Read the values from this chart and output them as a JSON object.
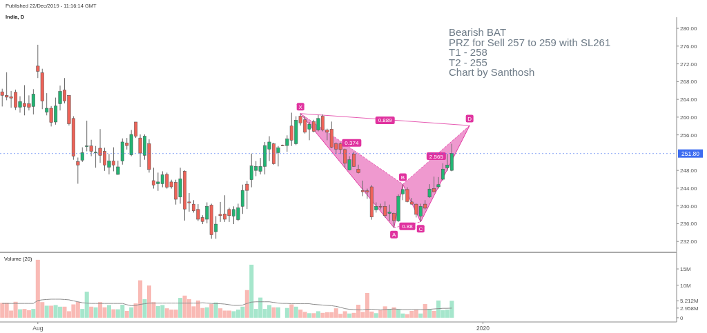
{
  "chart_data": [
    {
      "type": "candlestick",
      "subtitle": "Published 22/Dec/2019 - 11:16:14 GMT",
      "title": "India, D",
      "categories": [
        null,
        null,
        null,
        null,
        null,
        null,
        null,
        null,
        null,
        null,
        null,
        null,
        null,
        null,
        null,
        null,
        null,
        null,
        null,
        null,
        null,
        null,
        null,
        null,
        null,
        null,
        null,
        null,
        null,
        null,
        null,
        null,
        null,
        null,
        null,
        null,
        null,
        null,
        null,
        null,
        null,
        null,
        null,
        null,
        null,
        null,
        null,
        null,
        null,
        null,
        null,
        null,
        null,
        null,
        null,
        null,
        null,
        null,
        null,
        null,
        null,
        null,
        null,
        null,
        null,
        null,
        null,
        null,
        null,
        null,
        null,
        null,
        null,
        null,
        null,
        null,
        null,
        null,
        null,
        null,
        null,
        null,
        null,
        null,
        null,
        null,
        null,
        null,
        null,
        null,
        null,
        null,
        null,
        null,
        null,
        null,
        null,
        null,
        null,
        null,
        null,
        null,
        null,
        null,
        null,
        null,
        null,
        null,
        null,
        null,
        null,
        null,
        null,
        null,
        null,
        null,
        null,
        null,
        null,
        null,
        null,
        null,
        null,
        null,
        null,
        null,
        null,
        null,
        null,
        null,
        null,
        null,
        null,
        null,
        null,
        null,
        null,
        null,
        null,
        null,
        null,
        null,
        null,
        null,
        null,
        null,
        null,
        null,
        null,
        null,
        null,
        null
      ],
      "ohlc": [
        [
          265.7,
          266.4,
          262.4,
          264.9
        ],
        [
          264.9,
          270.1,
          263.8,
          264.5
        ],
        [
          264.6,
          265.9,
          262.1,
          264.3
        ],
        [
          265.6,
          266.2,
          261.6,
          262.2
        ],
        [
          262.2,
          264.7,
          261.0,
          263.5
        ],
        [
          263.1,
          267.2,
          260.4,
          262.4
        ],
        [
          263.0,
          264.9,
          261.5,
          262.2
        ],
        [
          262.4,
          266.3,
          260.6,
          265.2
        ],
        [
          271.5,
          276.3,
          268.8,
          270.3
        ],
        [
          270.0,
          270.9,
          261.8,
          263.6
        ],
        [
          261.1,
          265.4,
          260.4,
          262.0
        ],
        [
          262.0,
          262.5,
          257.9,
          258.8
        ],
        [
          258.9,
          264.4,
          258.3,
          262.5
        ],
        [
          263.0,
          267.1,
          261.5,
          265.8
        ],
        [
          266.1,
          268.8,
          263.1,
          263.6
        ],
        [
          264.9,
          264.9,
          258.1,
          258.5
        ],
        [
          259.7,
          260.2,
          250.4,
          251.2
        ],
        [
          250.0,
          250.9,
          245.0,
          249.2
        ],
        [
          250.3,
          253.2,
          249.9,
          252.0
        ],
        [
          253.4,
          259.2,
          252.3,
          253.5
        ],
        [
          253.5,
          254.9,
          251.2,
          252.3
        ],
        [
          252.0,
          253.5,
          248.6,
          252.1
        ],
        [
          253.0,
          257.3,
          249.7,
          251.4
        ],
        [
          252.3,
          253.1,
          247.9,
          249.2
        ],
        [
          248.7,
          251.7,
          247.1,
          250.1
        ],
        [
          250.1,
          253.2,
          247.8,
          249.2
        ],
        [
          247.1,
          250.2,
          247.0,
          248.8
        ],
        [
          250.1,
          255.2,
          249.3,
          254.4
        ],
        [
          254.2,
          255.3,
          252.7,
          253.6
        ],
        [
          251.5,
          257.1,
          251.2,
          256.1
        ],
        [
          258.9,
          258.9,
          255.3,
          255.7
        ],
        [
          255.3,
          256.1,
          248.8,
          251.9
        ],
        [
          251.4,
          256.1,
          250.4,
          255.7
        ],
        [
          254.0,
          255.0,
          247.5,
          248.2
        ],
        [
          245.7,
          248.6,
          243.9,
          244.7
        ],
        [
          245.0,
          247.5,
          243.4,
          245.4
        ],
        [
          245.0,
          247.8,
          244.2,
          247.0
        ],
        [
          247.1,
          247.5,
          243.9,
          244.2
        ],
        [
          245.4,
          245.9,
          243.9,
          244.3
        ],
        [
          245.3,
          245.9,
          240.3,
          241.5
        ],
        [
          242.0,
          248.6,
          240.5,
          246.1
        ],
        [
          247.8,
          248.0,
          236.7,
          239.3
        ],
        [
          240.9,
          242.9,
          238.7,
          240.7
        ],
        [
          240.4,
          241.3,
          238.5,
          238.9
        ],
        [
          239.2,
          240.4,
          236.6,
          237.0
        ],
        [
          237.4,
          237.9,
          235.9,
          236.5
        ],
        [
          237.0,
          240.8,
          236.1,
          239.9
        ],
        [
          240.2,
          240.5,
          232.6,
          233.5
        ],
        [
          234.2,
          237.7,
          232.6,
          235.9
        ],
        [
          238.1,
          240.9,
          236.4,
          237.8
        ],
        [
          238.2,
          242.4,
          236.4,
          237.0
        ],
        [
          239.2,
          239.6,
          236.4,
          237.8
        ],
        [
          237.7,
          239.9,
          235.9,
          239.2
        ],
        [
          236.9,
          240.5,
          236.6,
          239.6
        ],
        [
          239.9,
          244.8,
          238.2,
          243.5
        ],
        [
          244.9,
          245.6,
          239.3,
          243.5
        ],
        [
          245.9,
          251.8,
          244.2,
          249.0
        ],
        [
          248.0,
          250.1,
          246.7,
          248.9
        ],
        [
          247.8,
          250.8,
          247.1,
          248.9
        ],
        [
          248.9,
          254.4,
          247.1,
          253.6
        ],
        [
          252.8,
          255.7,
          250.1,
          254.4
        ],
        [
          254.0,
          254.2,
          249.3,
          249.5
        ],
        [
          252.0,
          253.5,
          248.9,
          253.1
        ],
        [
          253.7,
          253.8,
          253.5,
          253.6
        ],
        [
          253.6,
          255.9,
          252.2,
          255.1
        ],
        [
          258.0,
          261.0,
          253.5,
          254.8
        ],
        [
          254.0,
          260.2,
          253.7,
          259.3
        ],
        [
          260.2,
          260.8,
          258.1,
          258.7
        ],
        [
          259.4,
          260.2,
          256.3,
          256.6
        ],
        [
          257.3,
          258.9,
          254.8,
          258.4
        ],
        [
          259.0,
          259.4,
          256.6,
          256.8
        ],
        [
          257.1,
          260.5,
          256.8,
          259.7
        ],
        [
          260.2,
          260.6,
          256.8,
          257.1
        ],
        [
          257.1,
          257.4,
          254.8,
          256.6
        ],
        [
          257.3,
          259.0,
          253.0,
          253.2
        ],
        [
          254.0,
          254.3,
          251.7,
          252.8
        ],
        [
          254.0,
          254.3,
          251.7,
          252.7
        ],
        [
          252.7,
          252.9,
          248.6,
          249.6
        ],
        [
          248.1,
          251.2,
          248.0,
          250.4
        ],
        [
          251.7,
          252.2,
          248.8,
          248.9
        ],
        [
          248.3,
          249.3,
          247.3,
          247.5
        ],
        [
          243.5,
          245.7,
          242.2,
          243.2
        ],
        [
          243.4,
          243.9,
          241.6,
          243.1
        ],
        [
          244.3,
          244.7,
          236.9,
          237.5
        ],
        [
          239.1,
          240.8,
          238.5,
          239.9
        ],
        [
          239.9,
          240.5,
          239.2,
          239.8
        ],
        [
          239.9,
          241.0,
          237.4,
          237.8
        ],
        [
          238.3,
          240.3,
          236.6,
          238.6
        ],
        [
          238.3,
          238.5,
          235.1,
          236.7
        ],
        [
          236.6,
          242.6,
          236.4,
          242.2
        ],
        [
          242.7,
          244.9,
          241.3,
          243.7
        ],
        [
          243.7,
          244.2,
          240.8,
          241.0
        ],
        [
          240.9,
          241.8,
          240.3,
          240.4
        ],
        [
          240.4,
          240.5,
          237.4,
          238.1
        ],
        [
          237.7,
          240.5,
          236.4,
          239.9
        ],
        [
          240.4,
          241.3,
          239.2,
          239.5
        ],
        [
          242.0,
          244.9,
          241.8,
          243.8
        ],
        [
          243.9,
          246.6,
          243.1,
          243.2
        ],
        [
          244.3,
          246.5,
          243.9,
          244.8
        ],
        [
          246.0,
          249.6,
          245.7,
          248.3
        ],
        [
          248.6,
          251.7,
          247.9,
          249.2
        ],
        [
          248.0,
          254.0,
          247.8,
          251.8
        ],
        null,
        null,
        null,
        null,
        null,
        null,
        null,
        null,
        null,
        null,
        null,
        null,
        null,
        null,
        null,
        null,
        null,
        null,
        null,
        null,
        null,
        null,
        null,
        null,
        null,
        null,
        null,
        null,
        null,
        null,
        null,
        null,
        null,
        null,
        null,
        null,
        null,
        null,
        null,
        null,
        null,
        null,
        null,
        null,
        null,
        null,
        null,
        null,
        null,
        null
      ],
      "colors": [
        "#ef6358",
        "#ef6358",
        "#ef6358",
        "#ef6358",
        "#22b573",
        "#ef6358",
        "#ef6358",
        "#22b573",
        "#ef6358",
        "#ef6358",
        "#22b573",
        "#ef6358",
        "#22b573",
        "#22b573",
        "#ef6358",
        "#ef6358",
        "#ef6358",
        "#ef6358",
        "#22b573",
        "#22b573",
        "#ef6358",
        "#22b573",
        "#ef6358",
        "#ef6358",
        "#22b573",
        "#ef6358",
        "#22b573",
        "#22b573",
        "#ef6358",
        "#22b573",
        "#ef6358",
        "#ef6358",
        "#22b573",
        "#ef6358",
        "#ef6358",
        "#22b573",
        "#22b573",
        "#ef6358",
        "#ef6358",
        "#ef6358",
        "#22b573",
        "#ef6358",
        "#ef6358",
        "#ef6358",
        "#ef6358",
        "#ef6358",
        "#22b573",
        "#ef6358",
        "#22b573",
        "#ef6358",
        "#ef6358",
        "#ef6358",
        "#22b573",
        "#22b573",
        "#22b573",
        "#ef6358",
        "#22b573",
        "#22b573",
        "#22b573",
        "#22b573",
        "#22b573",
        "#ef6358",
        "#22b573",
        "#ef6358",
        "#22b573",
        "#ef6358",
        "#22b573",
        "#ef6358",
        "#ef6358",
        "#22b573",
        "#ef6358",
        "#22b573",
        "#ef6358",
        "#ef6358",
        "#ef6358",
        "#ef6358",
        "#ef6358",
        "#ef6358",
        "#22b573",
        "#ef6358",
        "#ef6358",
        "#ef6358",
        "#ef6358",
        "#ef6358",
        "#22b573",
        "#ef6358",
        "#ef6358",
        "#22b573",
        "#ef6358",
        "#22b573",
        "#22b573",
        "#ef6358",
        "#ef6358",
        "#ef6358",
        "#22b573",
        "#ef6358",
        "#22b573",
        "#ef6358",
        "#22b573",
        "#22b573",
        "#22b573",
        "#22b573",
        null,
        null,
        null,
        null,
        null,
        null,
        null,
        null,
        null,
        null,
        null,
        null,
        null,
        null,
        null,
        null,
        null,
        null,
        null,
        null,
        null,
        null,
        null,
        null,
        null,
        null,
        null,
        null,
        null,
        null,
        null,
        null,
        null,
        null,
        null,
        null,
        null,
        null,
        null,
        null,
        null,
        null,
        null,
        null,
        null,
        null,
        null,
        null,
        null,
        null
      ],
      "series": [
        {
          "type": "line",
          "color": "#e0339f",
          "values": [
            null,
            null,
            null,
            null,
            null,
            null,
            null,
            null,
            null,
            null,
            null,
            null,
            null,
            null,
            null,
            null,
            null,
            null,
            null,
            null,
            null,
            null,
            null,
            null,
            null,
            null,
            null,
            null,
            null,
            null,
            null,
            null,
            null,
            null,
            null,
            null,
            null,
            null,
            null,
            null,
            null,
            null,
            null,
            null,
            null,
            null,
            null,
            null,
            null,
            null,
            null,
            null,
            null,
            null,
            null,
            null,
            null,
            null,
            null,
            null,
            null,
            null,
            null,
            null,
            null,
            null,
            null,
            260.8,
            null,
            null,
            null,
            null,
            null,
            null,
            null,
            null,
            null,
            null,
            null,
            null,
            null,
            null,
            null,
            null,
            null,
            null,
            null,
            null,
            235.1,
            null,
            244.9,
            null,
            null,
            null,
            236.4,
            null,
            null,
            null,
            null,
            null,
            null,
            null,
            null,
            null,
            null,
            258.1,
            null,
            null,
            null,
            null,
            null,
            null,
            null,
            null,
            null,
            null,
            null,
            null,
            null,
            null,
            null,
            null,
            null,
            null,
            null,
            null,
            null,
            null,
            null,
            null,
            null,
            null,
            null,
            null,
            null,
            null,
            null,
            null,
            null,
            null,
            null,
            null,
            null,
            null,
            null,
            null,
            null,
            null,
            null,
            null,
            null,
            null
          ]
        }
      ],
      "ylim": [
        229.7,
        282.5
      ],
      "yticks": [
        {
          "value": 232,
          "label": "232.00"
        },
        {
          "value": 236,
          "label": "236.00"
        },
        {
          "value": 240,
          "label": "240.00"
        },
        {
          "value": 244,
          "label": "244.00"
        },
        {
          "value": 248,
          "label": "248.00"
        },
        {
          "value": 256,
          "label": "256.00"
        },
        {
          "value": 260,
          "label": "260.00"
        },
        {
          "value": 264,
          "label": "264.00"
        },
        {
          "value": 268,
          "label": "268.00"
        },
        {
          "value": 272,
          "label": "272.00"
        },
        {
          "value": 276,
          "label": "276.00"
        },
        {
          "value": 280,
          "label": "280.00"
        }
      ],
      "tick_labels": "y",
      "ref_lines": [
        {
          "axis": "y",
          "value": 251.8,
          "label": "251.80",
          "color": "#3d6cf0",
          "line_style": "dotted"
        }
      ],
      "annotations": [
        "Bearish BAT",
        "PRZ for Sell 257 to 259 with SL261",
        "T1 - 258",
        "T2 - 255",
        "Chart by Santhosh",
        {
          "text": "X",
          "y": 260.8
        },
        {
          "text": "A",
          "y": 235.1
        },
        {
          "text": "B",
          "y": 244.9
        },
        {
          "text": "C",
          "y": 236.4
        },
        {
          "text": "D",
          "y": 258.1
        },
        {
          "text": "0.374",
          "y": 254.2
        },
        {
          "text": "0.88",
          "y": 235.4
        },
        {
          "text": "2.565",
          "y": 251.2
        },
        {
          "text": "0.889",
          "y": 259.3
        }
      ]
    },
    {
      "type": "bar",
      "title": "Volume (20)",
      "categories": [
        null,
        null,
        null,
        null,
        null,
        null,
        null,
        null,
        "Aug",
        null,
        null,
        null,
        null,
        null,
        null,
        null,
        null,
        null,
        null,
        null,
        null,
        null,
        null,
        null,
        null,
        null,
        null,
        null,
        null,
        null,
        null,
        null,
        null,
        null,
        null,
        null,
        null,
        null,
        null,
        null,
        null,
        null,
        null,
        null,
        null,
        null,
        null,
        null,
        null,
        null,
        null,
        null,
        null,
        null,
        null,
        null,
        null,
        null,
        null,
        null,
        null,
        null,
        null,
        null,
        null,
        null,
        null,
        null,
        null,
        null,
        null,
        null,
        null,
        null,
        null,
        null,
        null,
        null,
        null,
        null,
        null,
        null,
        null,
        null,
        null,
        null,
        null,
        null,
        null,
        null,
        null,
        null,
        null,
        null,
        null,
        null,
        null,
        null,
        null,
        null,
        null,
        null,
        null,
        null,
        null,
        null,
        null,
        null,
        "2020",
        null,
        null,
        null,
        null,
        null,
        null,
        null,
        null,
        null,
        null,
        null,
        null,
        null,
        null,
        null,
        null,
        null,
        null,
        null,
        null,
        null,
        null,
        null,
        null,
        null,
        null,
        null,
        null,
        null,
        null,
        null,
        null,
        null,
        null,
        null,
        null,
        null,
        null,
        null,
        null,
        null,
        null,
        null
      ],
      "series": [
        {
          "type": "bar",
          "colors": [
            "#f9bab5",
            "#f9bab5",
            "#f9bab5",
            "#f9bab5",
            "#a6e6cc",
            "#f9bab5",
            "#f9bab5",
            "#a6e6cc",
            "#f9bab5",
            "#f9bab5",
            "#a6e6cc",
            "#f9bab5",
            "#a6e6cc",
            "#a6e6cc",
            "#f9bab5",
            "#f9bab5",
            "#f9bab5",
            "#f9bab5",
            "#a6e6cc",
            "#a6e6cc",
            "#f9bab5",
            "#a6e6cc",
            "#f9bab5",
            "#f9bab5",
            "#a6e6cc",
            "#f9bab5",
            "#a6e6cc",
            "#a6e6cc",
            "#f9bab5",
            "#a6e6cc",
            "#f9bab5",
            "#f9bab5",
            "#a6e6cc",
            "#f9bab5",
            "#f9bab5",
            "#a6e6cc",
            "#a6e6cc",
            "#f9bab5",
            "#f9bab5",
            "#f9bab5",
            "#a6e6cc",
            "#f9bab5",
            "#f9bab5",
            "#f9bab5",
            "#f9bab5",
            "#f9bab5",
            "#a6e6cc",
            "#f9bab5",
            "#a6e6cc",
            "#f9bab5",
            "#f9bab5",
            "#f9bab5",
            "#a6e6cc",
            "#a6e6cc",
            "#a6e6cc",
            "#f9bab5",
            "#a6e6cc",
            "#a6e6cc",
            "#a6e6cc",
            "#a6e6cc",
            "#a6e6cc",
            "#f9bab5",
            "#a6e6cc",
            null,
            "#a6e6cc",
            "#f9bab5",
            "#a6e6cc",
            "#f9bab5",
            "#f9bab5",
            "#a6e6cc",
            "#f9bab5",
            "#a6e6cc",
            "#f9bab5",
            "#f9bab5",
            "#f9bab5",
            "#f9bab5",
            "#f9bab5",
            "#f9bab5",
            "#a6e6cc",
            "#f9bab5",
            "#f9bab5",
            "#f9bab5",
            "#f9bab5",
            "#f9bab5",
            "#a6e6cc",
            "#f9bab5",
            "#f9bab5",
            "#a6e6cc",
            "#f9bab5",
            "#a6e6cc",
            "#a6e6cc",
            "#f9bab5",
            "#f9bab5",
            "#f9bab5",
            "#a6e6cc",
            "#f9bab5",
            "#a6e6cc",
            "#f9bab5",
            "#a6e6cc",
            "#a6e6cc",
            "#a6e6cc",
            "#a6e6cc",
            null,
            null,
            null,
            null,
            null,
            null,
            null,
            null,
            null,
            null,
            null,
            null,
            null,
            null,
            null,
            null,
            null,
            null,
            null,
            null,
            null,
            null,
            null,
            null,
            null,
            null,
            null,
            null,
            null,
            null,
            null,
            null,
            null,
            null,
            null,
            null,
            null,
            null,
            null,
            null,
            null,
            null,
            null,
            null,
            null,
            null,
            null,
            null,
            null,
            null
          ],
          "values": [
            4.6,
            4.6,
            2.2,
            4.9,
            2.6,
            2.7,
            2.3,
            2.7,
            17.8,
            4.8,
            3.7,
            3.7,
            3.9,
            3.4,
            3.4,
            2.0,
            4.1,
            4.9,
            2.7,
            8.0,
            3.4,
            3.2,
            4.8,
            3.2,
            3.9,
            2.6,
            2.6,
            4.0,
            2.1,
            3.2,
            4.4,
            11.5,
            5.7,
            9.9,
            4.8,
            3.6,
            3.9,
            2.9,
            2.5,
            2.5,
            6.1,
            6.8,
            5.7,
            3.5,
            5.3,
            3.0,
            3.2,
            4.2,
            4.7,
            2.9,
            2.2,
            2.2,
            2.0,
            2.5,
            3.4,
            8.5,
            16.3,
            2.7,
            6.2,
            2.7,
            3.9,
            3.2,
            3.2,
            null,
            3.0,
            4.1,
            3.4,
            2.5,
            1.8,
            1.4,
            1.4,
            2.0,
            1.5,
            1.7,
            1.7,
            2.9,
            1.2,
            2.0,
            1.3,
            1.5,
            4.0,
            1.8,
            7.6,
            1.9,
            1.4,
            2.5,
            3.5,
            2.7,
            3.2,
            2.5,
            1.3,
            1.1,
            2.1,
            2.5,
            1.3,
            4.2,
            2.7,
            2.1,
            5.3,
            2.3,
            2.5,
            5.212,
            null,
            null,
            null,
            null,
            null,
            null,
            null,
            null,
            null,
            null,
            null,
            null,
            null,
            null,
            null,
            null,
            null,
            null,
            null,
            null,
            null,
            null,
            null,
            null,
            null,
            null,
            null,
            null,
            null,
            null,
            null,
            null,
            null,
            null,
            null,
            null,
            null,
            null,
            null,
            null,
            null,
            null,
            null,
            null,
            null,
            null,
            null,
            null,
            null,
            null
          ]
        },
        {
          "type": "line",
          "color": "#8a8a8a",
          "values": [
            4.4,
            4.4,
            4.4,
            4.4,
            4.4,
            4.4,
            4.4,
            4.4,
            5.3,
            5.5,
            5.6,
            5.7,
            5.7,
            5.7,
            5.6,
            5.5,
            5.2,
            4.9,
            4.6,
            4.5,
            4.4,
            4.4,
            4.4,
            4.4,
            4.4,
            4.4,
            4.4,
            4.4,
            4.0,
            3.7,
            3.8,
            4.1,
            4.3,
            4.5,
            4.5,
            4.5,
            4.5,
            4.5,
            4.5,
            4.5,
            4.5,
            4.5,
            4.5,
            4.5,
            4.5,
            4.6,
            4.5,
            4.4,
            4.3,
            4.3,
            4.2,
            4.0,
            3.8,
            3.8,
            3.9,
            4.4,
            4.8,
            4.9,
            4.9,
            4.9,
            4.9,
            4.7,
            4.5,
            4.4,
            4.4,
            4.3,
            4.3,
            4.3,
            4.3,
            4.3,
            4.1,
            4.0,
            3.9,
            3.8,
            3.7,
            3.5,
            3.2,
            2.8,
            2.6,
            2.5,
            2.4,
            2.4,
            2.6,
            2.6,
            2.5,
            2.4,
            2.5,
            2.6,
            2.7,
            2.6,
            2.5,
            2.5,
            2.5,
            2.5,
            2.5,
            2.5,
            2.6,
            2.7,
            2.8,
            2.9,
            2.9,
            2.958,
            null,
            null,
            null,
            null,
            null,
            null,
            null,
            null,
            null,
            null,
            null,
            null,
            null,
            null,
            null,
            null,
            null,
            null,
            null,
            null,
            null,
            null,
            null,
            null,
            null,
            null,
            null,
            null,
            null,
            null,
            null,
            null,
            null,
            null,
            null,
            null,
            null,
            null,
            null,
            null,
            null,
            null,
            null,
            null,
            null,
            null,
            null,
            null,
            null,
            null
          ]
        }
      ],
      "ylim": [
        -1.3,
        20.1
      ],
      "yticks": [
        0,
        {
          "value": 2.958,
          "label": "2.958M"
        },
        {
          "value": 5.212,
          "label": "5.212M"
        },
        {
          "value": 10,
          "label": "10M"
        },
        {
          "value": 15,
          "label": "15M"
        }
      ]
    }
  ]
}
